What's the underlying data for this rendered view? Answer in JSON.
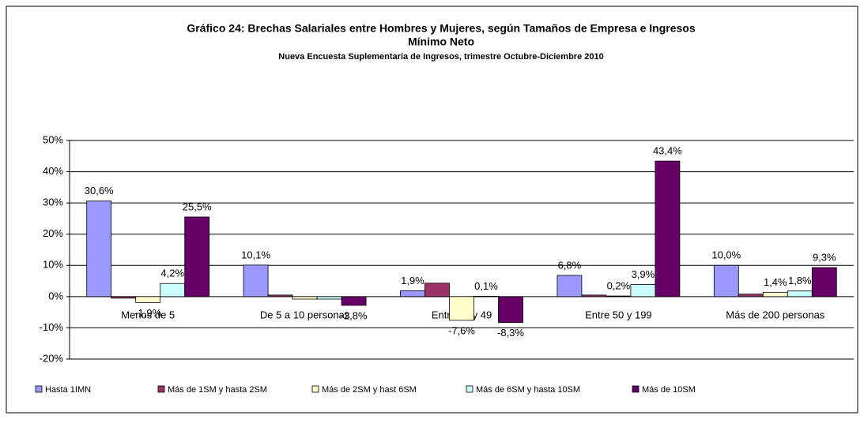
{
  "chart_data": {
    "type": "bar",
    "title": [
      "Gráfico 24: Brechas  Salariales entre Hombres y Mujeres, según Tamaños de Empresa e Ingresos",
      "Mínimo Neto"
    ],
    "subtitle": "Nueva Encuesta Suplementaria de Ingresos, trimestre Octubre-Diciembre 2010",
    "categories": [
      "Menos de 5",
      "De 5 a 10 personas",
      "Entre 11 y 49",
      "Entre 50 y 199",
      "Más de 200 personas"
    ],
    "series": [
      {
        "name": "Hasta 1IMN",
        "color": "#9999ff",
        "values": [
          30.6,
          10.1,
          1.9,
          6.8,
          10.0
        ],
        "value_labels": [
          "30,6%",
          "10,1%",
          "1,9%",
          "6,8%",
          "10,0%"
        ]
      },
      {
        "name": "Más de 1SM y hasta 2SM",
        "color": "#993366",
        "values": [
          -0.5,
          0.5,
          4.3,
          0.5,
          0.8
        ],
        "value_labels": [
          null,
          null,
          null,
          null,
          null
        ]
      },
      {
        "name": "Más de 2SM y hast 6SM",
        "color": "#ffffcc",
        "values": [
          -1.9,
          -0.8,
          -7.6,
          0.2,
          1.4
        ],
        "value_labels": [
          "-1,9%",
          null,
          "-7,6%",
          "0,2%",
          "1,4%"
        ]
      },
      {
        "name": "Más de 6SM y hasta 10SM",
        "color": "#ccffff",
        "values": [
          4.2,
          -0.8,
          0.1,
          3.9,
          1.8
        ],
        "value_labels": [
          "4,2%",
          null,
          "0,1%",
          "3,9%",
          "1,8%"
        ]
      },
      {
        "name": "Más de 10SM",
        "color": "#660066",
        "values": [
          25.5,
          -2.8,
          -8.3,
          43.4,
          9.3
        ],
        "value_labels": [
          "25,5%",
          "-2,8%",
          "-8,3%",
          "43,4%",
          "9,3%"
        ]
      }
    ],
    "ylim": [
      -20,
      50
    ],
    "yticks": [
      {
        "value": -20,
        "label": "-20%"
      },
      {
        "value": -10,
        "label": "-10%"
      },
      {
        "value": 0,
        "label": "0%"
      },
      {
        "value": 10,
        "label": "10%"
      },
      {
        "value": 20,
        "label": "20%"
      },
      {
        "value": 30,
        "label": "30%"
      },
      {
        "value": 40,
        "label": "40%"
      },
      {
        "value": 50,
        "label": "50%"
      }
    ],
    "grid": true
  }
}
